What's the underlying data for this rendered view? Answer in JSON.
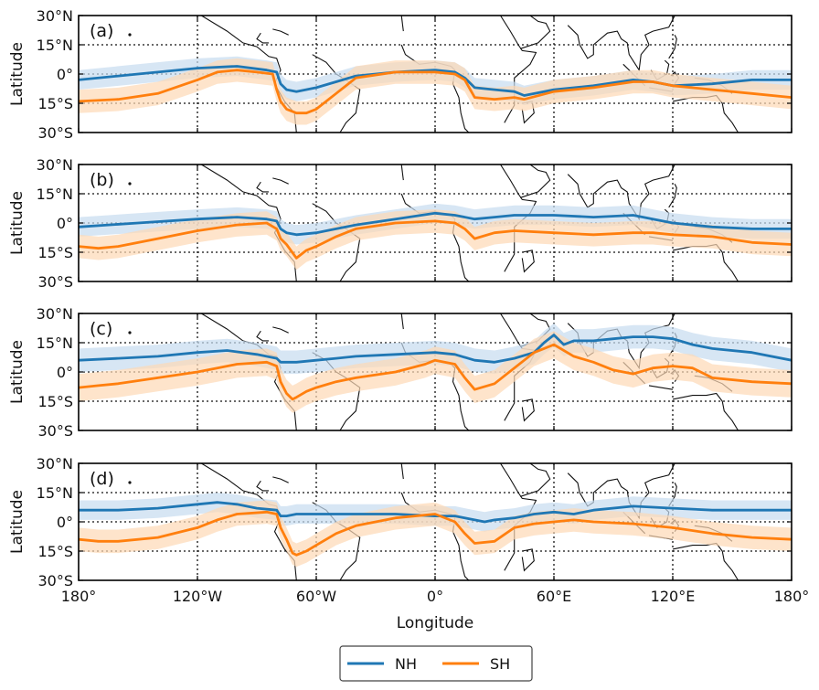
{
  "chart_data": {
    "type": "line",
    "xlabel": "Longitude",
    "ylabel": "Latitude",
    "xlim": [
      -180,
      180
    ],
    "ylim": [
      -30,
      30
    ],
    "xticks": [
      -180,
      -120,
      -60,
      0,
      60,
      120,
      180
    ],
    "xtick_labels": [
      "180°",
      "120°W",
      "60°W",
      "0°",
      "60°E",
      "120°E",
      "180°"
    ],
    "yticks": [
      30,
      15,
      0,
      -15,
      -30
    ],
    "ytick_labels": [
      "30°N",
      "15°N",
      "0°",
      "15°S",
      "30°S"
    ],
    "grid": "dotted at ±15°, 0°, 120°W, 60°W, 0°, 60°E, 120°E",
    "legend": {
      "position": "bottom-center",
      "entries": [
        "NH",
        "SH"
      ]
    },
    "colors": {
      "NH": "#1f77b4",
      "SH": "#ff7f0e",
      "NH_band": "#c6dbef",
      "SH_band": "#fdd9b5"
    },
    "panels": [
      {
        "label": "(a)",
        "series": [
          {
            "name": "NH",
            "x": [
              -180,
              -150,
              -120,
              -100,
              -85,
              -80,
              -78,
              -75,
              -70,
              -60,
              -50,
              -40,
              -20,
              0,
              10,
              15,
              20,
              30,
              40,
              45,
              60,
              80,
              100,
              110,
              120,
              140,
              160,
              180
            ],
            "y": [
              -3,
              0,
              3,
              4,
              2,
              1,
              -5,
              -8,
              -9,
              -7,
              -4,
              -1,
              1,
              2,
              1,
              -2,
              -7,
              -8,
              -9,
              -11,
              -8,
              -6,
              -3,
              -4,
              -6,
              -5,
              -3,
              -3
            ],
            "spread": 5
          },
          {
            "name": "SH",
            "x": [
              -180,
              -160,
              -140,
              -120,
              -110,
              -100,
              -90,
              -82,
              -80,
              -78,
              -75,
              -70,
              -65,
              -60,
              -50,
              -40,
              -20,
              0,
              10,
              15,
              20,
              30,
              40,
              45,
              60,
              80,
              100,
              110,
              120,
              140,
              160,
              180
            ],
            "y": [
              -14,
              -13,
              -10,
              -3,
              1,
              2,
              1,
              0,
              -8,
              -14,
              -18,
              -20,
              -20,
              -18,
              -10,
              -2,
              1,
              1,
              0,
              -3,
              -12,
              -13,
              -12,
              -13,
              -9,
              -7,
              -4,
              -4,
              -6,
              -8,
              -10,
              -12
            ],
            "spread": 6
          }
        ]
      },
      {
        "label": "(b)",
        "series": [
          {
            "name": "NH",
            "x": [
              -180,
              -150,
              -120,
              -100,
              -85,
              -80,
              -78,
              -75,
              -70,
              -60,
              -50,
              -40,
              -20,
              0,
              10,
              20,
              30,
              40,
              60,
              80,
              100,
              110,
              120,
              140,
              160,
              180
            ],
            "y": [
              -2,
              0,
              2,
              3,
              2,
              1,
              -3,
              -5,
              -6,
              -5,
              -3,
              -1,
              2,
              5,
              4,
              2,
              3,
              4,
              4,
              3,
              4,
              2,
              0,
              -2,
              -3,
              -3
            ],
            "spread": 5
          },
          {
            "name": "SH",
            "x": [
              -180,
              -170,
              -160,
              -140,
              -120,
              -100,
              -85,
              -80,
              -78,
              -75,
              -70,
              -65,
              -60,
              -50,
              -40,
              -20,
              0,
              10,
              15,
              20,
              30,
              40,
              60,
              80,
              100,
              110,
              120,
              140,
              160,
              180
            ],
            "y": [
              -12,
              -13,
              -12,
              -8,
              -4,
              -1,
              0,
              -3,
              -8,
              -11,
              -18,
              -14,
              -12,
              -7,
              -3,
              0,
              1,
              0,
              -3,
              -8,
              -5,
              -4,
              -5,
              -6,
              -5,
              -5,
              -6,
              -7,
              -10,
              -11
            ],
            "spread": 6
          }
        ]
      },
      {
        "label": "(c)",
        "series": [
          {
            "name": "NH",
            "x": [
              -180,
              -160,
              -140,
              -120,
              -105,
              -90,
              -80,
              -78,
              -75,
              -70,
              -60,
              -50,
              -40,
              -20,
              0,
              10,
              20,
              30,
              40,
              50,
              55,
              60,
              65,
              70,
              80,
              90,
              100,
              110,
              120,
              130,
              140,
              160,
              180
            ],
            "y": [
              6,
              7,
              8,
              10,
              11,
              9,
              7,
              5,
              5,
              5,
              6,
              7,
              8,
              9,
              10,
              9,
              6,
              5,
              7,
              10,
              15,
              19,
              14,
              16,
              16,
              17,
              18,
              18,
              17,
              14,
              12,
              10,
              6
            ],
            "spread": 6
          },
          {
            "name": "SH",
            "x": [
              -180,
              -170,
              -160,
              -140,
              -120,
              -110,
              -100,
              -85,
              -80,
              -78,
              -75,
              -72,
              -70,
              -65,
              -60,
              -50,
              -40,
              -20,
              -5,
              0,
              10,
              15,
              20,
              30,
              40,
              50,
              55,
              60,
              70,
              80,
              90,
              100,
              110,
              120,
              130,
              140,
              160,
              180
            ],
            "y": [
              -8,
              -7,
              -6,
              -3,
              0,
              2,
              4,
              5,
              3,
              -5,
              -11,
              -14,
              -13,
              -10,
              -8,
              -5,
              -3,
              0,
              4,
              6,
              4,
              -3,
              -9,
              -6,
              2,
              10,
              12,
              14,
              8,
              5,
              1,
              -1,
              2,
              3,
              2,
              -3,
              -5,
              -6
            ],
            "spread": 7
          }
        ]
      },
      {
        "label": "(d)",
        "series": [
          {
            "name": "NH",
            "x": [
              -180,
              -160,
              -140,
              -120,
              -110,
              -100,
              -90,
              -80,
              -78,
              -75,
              -70,
              -60,
              -50,
              -40,
              -20,
              0,
              10,
              15,
              20,
              25,
              30,
              40,
              50,
              60,
              70,
              80,
              100,
              120,
              140,
              160,
              180
            ],
            "y": [
              6,
              6,
              7,
              9,
              10,
              9,
              7,
              6,
              3,
              3,
              4,
              4,
              4,
              4,
              4,
              3,
              3,
              2,
              1,
              0,
              1,
              2,
              4,
              5,
              4,
              6,
              8,
              7,
              6,
              6,
              6
            ],
            "spread": 5
          },
          {
            "name": "SH",
            "x": [
              -180,
              -170,
              -160,
              -140,
              -120,
              -110,
              -100,
              -85,
              -80,
              -78,
              -75,
              -72,
              -70,
              -65,
              -60,
              -50,
              -40,
              -20,
              0,
              10,
              15,
              20,
              30,
              40,
              50,
              60,
              70,
              80,
              100,
              120,
              140,
              160,
              180
            ],
            "y": [
              -9,
              -10,
              -10,
              -8,
              -3,
              1,
              4,
              5,
              4,
              -3,
              -9,
              -16,
              -17,
              -15,
              -12,
              -6,
              -2,
              2,
              4,
              0,
              -6,
              -11,
              -10,
              -3,
              -1,
              0,
              1,
              0,
              -1,
              -3,
              -6,
              -8,
              -9
            ],
            "spread": 6
          }
        ]
      }
    ]
  }
}
